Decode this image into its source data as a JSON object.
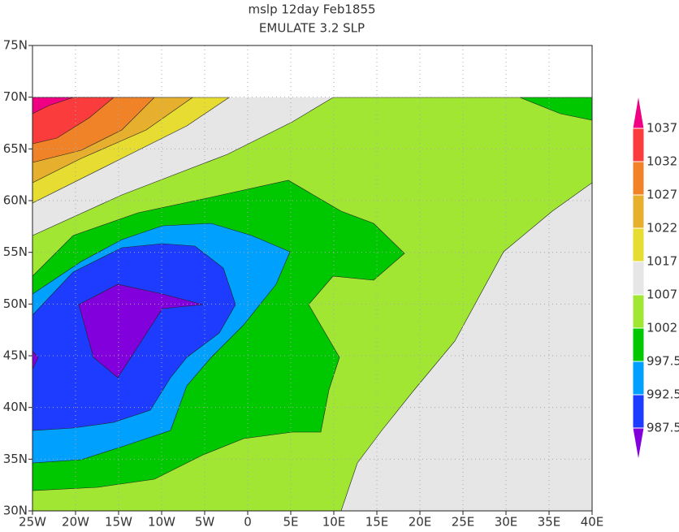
{
  "title": [
    "mslp 12day Feb1855",
    "EMULATE 3.2 SLP"
  ],
  "map": {
    "lonlim": [
      -25,
      40
    ],
    "latlim": [
      30,
      75
    ],
    "grid": true,
    "lon_ticks": [
      {
        "value": -25,
        "label": "25W"
      },
      {
        "value": -20,
        "label": "20W"
      },
      {
        "value": -15,
        "label": "15W"
      },
      {
        "value": -10,
        "label": "10W"
      },
      {
        "value": -5,
        "label": "5W"
      },
      0,
      {
        "value": 5,
        "label": "5E"
      },
      {
        "value": 10,
        "label": "10E"
      },
      {
        "value": 15,
        "label": "15E"
      },
      {
        "value": 20,
        "label": "20E"
      },
      {
        "value": 25,
        "label": "25E"
      },
      {
        "value": 30,
        "label": "30E"
      },
      {
        "value": 35,
        "label": "35E"
      },
      {
        "value": 40,
        "label": "40E"
      }
    ],
    "lat_ticks": [
      {
        "value": 30,
        "label": "30N"
      },
      {
        "value": 35,
        "label": "35N"
      },
      {
        "value": 40,
        "label": "40N"
      },
      {
        "value": 45,
        "label": "45N"
      },
      {
        "value": 50,
        "label": "50N"
      },
      {
        "value": 55,
        "label": "55N"
      },
      {
        "value": 60,
        "label": "60N"
      },
      {
        "value": 65,
        "label": "65N"
      },
      {
        "value": 70,
        "label": "70N"
      },
      {
        "value": 75,
        "label": "75N"
      }
    ]
  },
  "colorbar": {
    "levels": [
      987.5,
      992.5,
      997.5,
      1002,
      1007,
      1017,
      1022,
      1027,
      1032,
      1037
    ],
    "colors": [
      "#8200dc",
      "#1e3cff",
      "#00a0ff",
      "#00c800",
      "#a0e632",
      "#e6e6e6",
      "#e6dc32",
      "#e6af2d",
      "#f08228",
      "#fa3c3c",
      "#f00082"
    ]
  }
}
